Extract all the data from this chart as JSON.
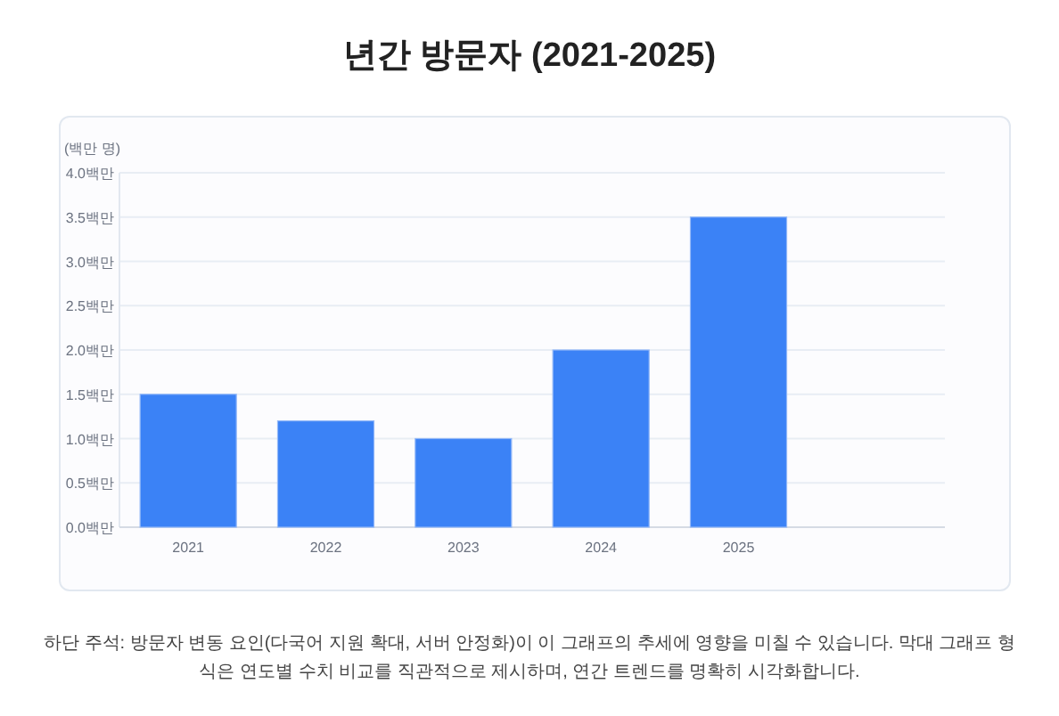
{
  "chart_data": {
    "type": "bar",
    "title": "년간 방문자 (2021-2025)",
    "ylabel": "(백만 명)",
    "categories": [
      "2021",
      "2022",
      "2023",
      "2024",
      "2025"
    ],
    "values": [
      1.5,
      1.2,
      1.0,
      2.0,
      3.5
    ],
    "color": "#3b82f6",
    "ylim": [
      0,
      4
    ],
    "yticks": [
      {
        "value": 0,
        "label": "0.0백만"
      },
      {
        "value": 0.5,
        "label": "0.5백만"
      },
      {
        "value": 1,
        "label": "1.0백만"
      },
      {
        "value": 1.5,
        "label": "1.5백만"
      },
      {
        "value": 2,
        "label": "2.0백만"
      },
      {
        "value": 2.5,
        "label": "2.5백만"
      },
      {
        "value": 3,
        "label": "3.0백만"
      },
      {
        "value": 3.5,
        "label": "3.5백만"
      },
      {
        "value": 4,
        "label": "4.0백만"
      }
    ],
    "grid": "y",
    "annotations": [
      "하단 주석: 방문자 변동 요인(다국어 지원 확대, 서버 안정화)이 이 그래프의 추세에 영향을 미칠 수 있습니다. 막대 그래프 형식은 연도별 수치 비교를 직관적으로 제시하며, 연간 트렌드를 명확히 시각화합니다."
    ]
  }
}
